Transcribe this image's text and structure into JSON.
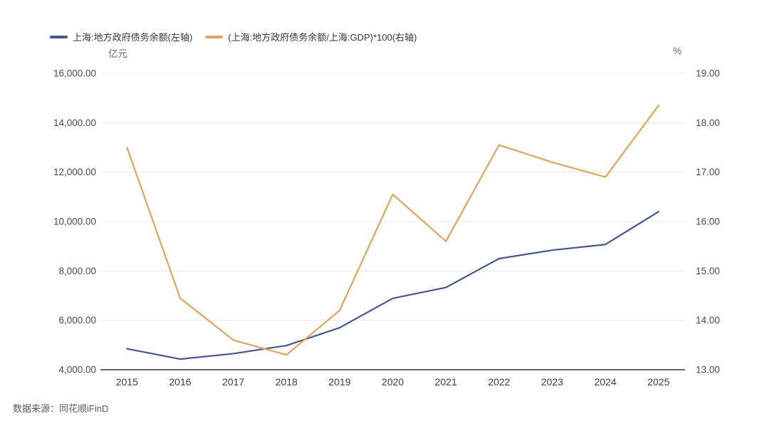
{
  "page": {
    "background": "#ffffff"
  },
  "legend": [
    {
      "label": "上海:地方政府债务余额(左轴)",
      "color": "#48588e"
    },
    {
      "label": "(上海:地方政府债务余额/上海:GDP)*100(右轴)",
      "color": "#e2a458"
    }
  ],
  "footer": {
    "source_label": "数据来源：同花顺iFinD"
  },
  "chart_data": {
    "type": "line",
    "title": "",
    "categories": [
      "2015",
      "2016",
      "2017",
      "2018",
      "2019",
      "2020",
      "2021",
      "2022",
      "2023",
      "2024",
      "2025"
    ],
    "series": [
      {
        "name": "上海:地方政府债务余额(左轴)",
        "axis": "left",
        "color": "#48588e",
        "values": [
          4850,
          4430,
          4650,
          4980,
          5700,
          6890,
          7330,
          8500,
          8840,
          9070,
          10400
        ]
      },
      {
        "name": "(上海:地方政府债务余额/上海:GDP)*100(右轴)",
        "axis": "right",
        "color": "#e2a458",
        "values": [
          17.5,
          14.45,
          13.6,
          13.3,
          14.2,
          16.55,
          15.6,
          17.55,
          17.2,
          16.9,
          18.35
        ]
      }
    ],
    "left_axis": {
      "unit": "亿元",
      "min": 4000,
      "max": 16000,
      "ticks": [
        {
          "value": 16000,
          "label": "16,000.00"
        },
        {
          "value": 14000,
          "label": "14,000.00"
        },
        {
          "value": 12000,
          "label": "12,000.00"
        },
        {
          "value": 10000,
          "label": "10,000.00"
        },
        {
          "value": 8000,
          "label": "8,000.00"
        },
        {
          "value": 6000,
          "label": "6,000.00"
        },
        {
          "value": 4000,
          "label": "4,000.00"
        }
      ]
    },
    "right_axis": {
      "unit": "%",
      "min": 13,
      "max": 19,
      "ticks": [
        {
          "value": 19,
          "label": "19.00"
        },
        {
          "value": 18,
          "label": "18.00"
        },
        {
          "value": 17,
          "label": "17.00"
        },
        {
          "value": 16,
          "label": "16.00"
        },
        {
          "value": 15,
          "label": "15.00"
        },
        {
          "value": 14,
          "label": "14.00"
        },
        {
          "value": 13,
          "label": "13.00"
        }
      ]
    },
    "grid": true,
    "legend_position": "top-left",
    "colors": {
      "gridline": "#e8e8ea",
      "axis_line": "#333333"
    }
  }
}
